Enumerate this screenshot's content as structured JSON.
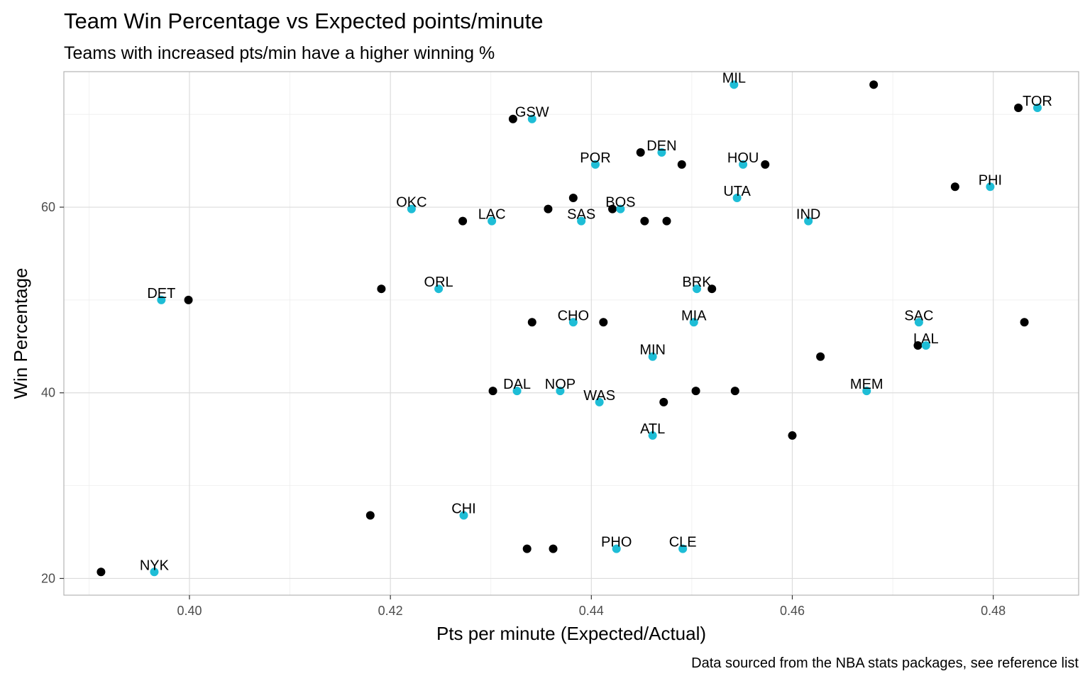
{
  "chart_data": {
    "type": "scatter",
    "title": "Team Win Percentage vs Expected points/minute",
    "subtitle": "Teams with increased pts/min have a higher winning %",
    "xlabel": "Pts per minute (Expected/Actual)",
    "ylabel": "Win Percentage",
    "caption": "Data sourced from the NBA stats packages, see reference list",
    "xlim": [
      0.3875,
      0.4885
    ],
    "ylim": [
      18.2,
      74.6
    ],
    "x_ticks": [
      0.4,
      0.42,
      0.44,
      0.46,
      0.48
    ],
    "x_tick_labels": [
      "0.40",
      "0.42",
      "0.44",
      "0.46",
      "0.48"
    ],
    "y_ticks": [
      20,
      40,
      60
    ],
    "y_tick_labels": [
      "20",
      "40",
      "60"
    ],
    "grid": true,
    "colors": {
      "expected": "#1ebdd6",
      "actual": "#000000"
    },
    "series": [
      {
        "values": [
          {
            "team": "MIL",
            "x": 0.4542,
            "y": 73.2
          },
          {
            "team": "TOR",
            "x": 0.4844,
            "y": 70.7
          },
          {
            "team": "GSW",
            "x": 0.4341,
            "y": 69.5
          },
          {
            "team": "DEN",
            "x": 0.447,
            "y": 65.9
          },
          {
            "team": "POR",
            "x": 0.4404,
            "y": 64.6
          },
          {
            "team": "HOU",
            "x": 0.4551,
            "y": 64.6
          },
          {
            "team": "PHI",
            "x": 0.4797,
            "y": 62.2
          },
          {
            "team": "UTA",
            "x": 0.4545,
            "y": 61.0
          },
          {
            "team": "BOS",
            "x": 0.4429,
            "y": 59.8
          },
          {
            "team": "OKC",
            "x": 0.4221,
            "y": 59.8
          },
          {
            "team": "LAC",
            "x": 0.4301,
            "y": 58.5
          },
          {
            "team": "SAS",
            "x": 0.439,
            "y": 58.5
          },
          {
            "team": "IND",
            "x": 0.4616,
            "y": 58.5
          },
          {
            "team": "ORL",
            "x": 0.4248,
            "y": 51.2
          },
          {
            "team": "BRK",
            "x": 0.4505,
            "y": 51.2
          },
          {
            "team": "DET",
            "x": 0.3972,
            "y": 50.0
          },
          {
            "team": "CHO",
            "x": 0.4382,
            "y": 47.6
          },
          {
            "team": "MIA",
            "x": 0.4502,
            "y": 47.6
          },
          {
            "team": "SAC",
            "x": 0.4726,
            "y": 47.6
          },
          {
            "team": "LAL",
            "x": 0.4733,
            "y": 45.1
          },
          {
            "team": "MIN",
            "x": 0.4461,
            "y": 43.9
          },
          {
            "team": "DAL",
            "x": 0.4326,
            "y": 40.2
          },
          {
            "team": "NOP",
            "x": 0.4369,
            "y": 40.2
          },
          {
            "team": "MEM",
            "x": 0.4674,
            "y": 40.2
          },
          {
            "team": "WAS",
            "x": 0.4408,
            "y": 39.0
          },
          {
            "team": "ATL",
            "x": 0.4461,
            "y": 35.4
          },
          {
            "team": "CHI",
            "x": 0.4273,
            "y": 26.8
          },
          {
            "team": "PHO",
            "x": 0.4425,
            "y": 23.2
          },
          {
            "team": "CLE",
            "x": 0.4491,
            "y": 23.2
          },
          {
            "team": "NYK",
            "x": 0.3965,
            "y": 20.7
          }
        ]
      },
      {
        "values": [
          {
            "team": "MIL",
            "x": 0.4681,
            "y": 73.2
          },
          {
            "team": "TOR",
            "x": 0.4825,
            "y": 70.7
          },
          {
            "team": "GSW",
            "x": 0.4322,
            "y": 69.5
          },
          {
            "team": "DEN",
            "x": 0.4449,
            "y": 65.9
          },
          {
            "team": "POR",
            "x": 0.449,
            "y": 64.6
          },
          {
            "team": "HOU",
            "x": 0.4573,
            "y": 64.6
          },
          {
            "team": "PHI",
            "x": 0.4762,
            "y": 62.2
          },
          {
            "team": "UTA",
            "x": 0.4382,
            "y": 61.0
          },
          {
            "team": "BOS",
            "x": 0.4421,
            "y": 59.8
          },
          {
            "team": "OKC",
            "x": 0.4357,
            "y": 59.8
          },
          {
            "team": "LAC",
            "x": 0.4272,
            "y": 58.5
          },
          {
            "team": "SAS",
            "x": 0.4453,
            "y": 58.5
          },
          {
            "team": "IND",
            "x": 0.4475,
            "y": 58.5
          },
          {
            "team": "ORL",
            "x": 0.4191,
            "y": 51.2
          },
          {
            "team": "BRK",
            "x": 0.452,
            "y": 51.2
          },
          {
            "team": "DET",
            "x": 0.3999,
            "y": 50.0
          },
          {
            "team": "CHO",
            "x": 0.4341,
            "y": 47.6
          },
          {
            "team": "MIA",
            "x": 0.4412,
            "y": 47.6
          },
          {
            "team": "SAC",
            "x": 0.4831,
            "y": 47.6
          },
          {
            "team": "LAL",
            "x": 0.4725,
            "y": 45.1
          },
          {
            "team": "MIN",
            "x": 0.4628,
            "y": 43.9
          },
          {
            "team": "DAL",
            "x": 0.4302,
            "y": 40.2
          },
          {
            "team": "NOP",
            "x": 0.4504,
            "y": 40.2
          },
          {
            "team": "MEM",
            "x": 0.4543,
            "y": 40.2
          },
          {
            "team": "WAS",
            "x": 0.4472,
            "y": 39.0
          },
          {
            "team": "ATL",
            "x": 0.46,
            "y": 35.4
          },
          {
            "team": "CHI",
            "x": 0.418,
            "y": 26.8
          },
          {
            "team": "PHO",
            "x": 0.4336,
            "y": 23.2
          },
          {
            "team": "CLE",
            "x": 0.4362,
            "y": 23.2
          },
          {
            "team": "NYK",
            "x": 0.3912,
            "y": 20.7
          }
        ]
      }
    ]
  }
}
